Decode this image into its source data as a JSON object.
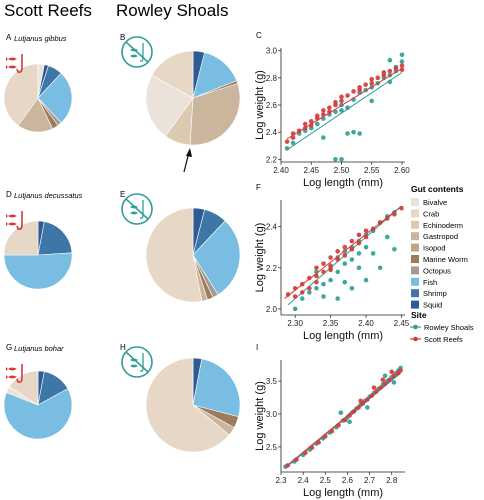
{
  "headers": {
    "col1": "Scott Reefs",
    "col2": "Rowley Shoals"
  },
  "colors": {
    "Bivalve": "#ebe3d9",
    "Crab": "#e6d7c7",
    "Echinoderm": "#dcc9b2",
    "Gastropod": "#cbb59c",
    "Isopod": "#bfa58a",
    "Marine Worm": "#9c7c5e",
    "Octopus": "#a79a90",
    "Fish": "#79bde3",
    "Shrimp": "#3f76a8",
    "Squid": "#2e5b94",
    "rowley": "#2f9e98",
    "scott": "#d63a3a",
    "fish_icon_red": "#d63a3a",
    "fish_icon_teal": "#2f9e98"
  },
  "legend": {
    "gut_title": "Gut contents",
    "gut_items": [
      "Bivalve",
      "Crab",
      "Echinoderm",
      "Gastropod",
      "Isopod",
      "Marine Worm",
      "Octopus",
      "Fish",
      "Shrimp",
      "Squid"
    ],
    "site_title": "Site",
    "site_items": [
      "Rowley Shoals",
      "Scott Reefs"
    ]
  },
  "icons": {
    "red": "fish-on-hook-icon",
    "teal": "no-fishing-icon"
  },
  "chart_data": [
    {
      "type": "pie",
      "label": "A",
      "species": "Lutjanus gibbus",
      "site": "Scott Reefs",
      "slices": [
        {
          "cat": "Bivalve",
          "value": 3
        },
        {
          "cat": "Squid",
          "value": 2
        },
        {
          "cat": "Shrimp",
          "value": 7
        },
        {
          "cat": "Fish",
          "value": 26
        },
        {
          "cat": "Octopus",
          "value": 2
        },
        {
          "cat": "Marine Worm",
          "value": 3
        },
        {
          "cat": "Gastropod",
          "value": 17
        },
        {
          "cat": "Crab",
          "value": 40
        }
      ]
    },
    {
      "type": "pie",
      "label": "B",
      "species": "",
      "site": "Rowley Shoals",
      "slices": [
        {
          "cat": "Squid",
          "value": 4
        },
        {
          "cat": "Fish",
          "value": 15
        },
        {
          "cat": "Marine Worm",
          "value": 1
        },
        {
          "cat": "Gastropod",
          "value": 31
        },
        {
          "cat": "Echinoderm",
          "value": 9
        },
        {
          "cat": "Bivalve",
          "value": 23
        },
        {
          "cat": "Crab",
          "value": 17
        }
      ]
    },
    {
      "type": "line",
      "label": "C",
      "xlabel": "Log length (mm)",
      "ylabel": "Log weight (g)",
      "xlim": [
        2.4,
        2.605
      ],
      "ylim": [
        2.18,
        3.02
      ],
      "xticks": [
        2.4,
        2.45,
        2.5,
        2.55,
        2.6
      ],
      "xtick_labels": [
        "2.40",
        "2.45",
        "2.50",
        "2.55",
        "2.60"
      ],
      "yticks": [
        2.2,
        2.4,
        2.6,
        2.8,
        3.0
      ],
      "ytick_labels": [
        "2.2",
        "2.4",
        "2.6",
        "2.8",
        "3.0"
      ],
      "series": [
        {
          "name": "Rowley Shoals",
          "fit": [
            [
              2.41,
              2.27
            ],
            [
              2.6,
              2.84
            ]
          ],
          "points": [
            [
              2.41,
              2.28
            ],
            [
              2.42,
              2.32
            ],
            [
              2.43,
              2.39
            ],
            [
              2.44,
              2.41
            ],
            [
              2.45,
              2.43
            ],
            [
              2.46,
              2.46
            ],
            [
              2.47,
              2.5
            ],
            [
              2.47,
              2.36
            ],
            [
              2.48,
              2.53
            ],
            [
              2.49,
              2.55
            ],
            [
              2.5,
              2.56
            ],
            [
              2.5,
              2.6
            ],
            [
              2.51,
              2.58
            ],
            [
              2.52,
              2.64
            ],
            [
              2.53,
              2.69
            ],
            [
              2.54,
              2.71
            ],
            [
              2.55,
              2.73
            ],
            [
              2.56,
              2.76
            ],
            [
              2.57,
              2.8
            ],
            [
              2.58,
              2.82
            ],
            [
              2.59,
              2.85
            ],
            [
              2.59,
              2.88
            ],
            [
              2.6,
              2.92
            ],
            [
              2.6,
              2.97
            ],
            [
              2.58,
              2.93
            ],
            [
              2.49,
              2.2
            ],
            [
              2.5,
              2.2
            ],
            [
              2.51,
              2.39
            ],
            [
              2.52,
              2.4
            ],
            [
              2.53,
              2.39
            ],
            [
              2.55,
              2.63
            ],
            [
              2.58,
              2.77
            ]
          ]
        },
        {
          "name": "Scott Reefs",
          "fit": [
            [
              2.41,
              2.35
            ],
            [
              2.6,
              2.87
            ]
          ],
          "points": [
            [
              2.41,
              2.33
            ],
            [
              2.42,
              2.36
            ],
            [
              2.42,
              2.39
            ],
            [
              2.43,
              2.41
            ],
            [
              2.44,
              2.43
            ],
            [
              2.44,
              2.46
            ],
            [
              2.45,
              2.48
            ],
            [
              2.45,
              2.45
            ],
            [
              2.46,
              2.5
            ],
            [
              2.46,
              2.52
            ],
            [
              2.47,
              2.53
            ],
            [
              2.47,
              2.56
            ],
            [
              2.48,
              2.58
            ],
            [
              2.48,
              2.55
            ],
            [
              2.49,
              2.6
            ],
            [
              2.49,
              2.62
            ],
            [
              2.5,
              2.63
            ],
            [
              2.5,
              2.66
            ],
            [
              2.51,
              2.67
            ],
            [
              2.52,
              2.7
            ],
            [
              2.53,
              2.71
            ],
            [
              2.53,
              2.73
            ],
            [
              2.54,
              2.75
            ],
            [
              2.55,
              2.76
            ],
            [
              2.55,
              2.79
            ],
            [
              2.56,
              2.8
            ],
            [
              2.57,
              2.82
            ],
            [
              2.57,
              2.84
            ],
            [
              2.58,
              2.85
            ],
            [
              2.59,
              2.87
            ],
            [
              2.6,
              2.89
            ],
            [
              2.6,
              2.86
            ]
          ]
        }
      ]
    },
    {
      "type": "pie",
      "label": "D",
      "species": "Lutjanus decussatus",
      "site": "Scott Reefs",
      "slices": [
        {
          "cat": "Squid",
          "value": 3
        },
        {
          "cat": "Shrimp",
          "value": 21
        },
        {
          "cat": "Fish",
          "value": 51
        },
        {
          "cat": "Crab",
          "value": 25
        }
      ]
    },
    {
      "type": "pie",
      "label": "E",
      "species": "",
      "site": "Rowley Shoals",
      "slices": [
        {
          "cat": "Squid",
          "value": 4
        },
        {
          "cat": "Shrimp",
          "value": 8
        },
        {
          "cat": "Fish",
          "value": 29
        },
        {
          "cat": "Octopus",
          "value": 2
        },
        {
          "cat": "Marine Worm",
          "value": 2
        },
        {
          "cat": "Gastropod",
          "value": 2
        },
        {
          "cat": "Crab",
          "value": 53
        }
      ]
    },
    {
      "type": "line",
      "label": "F",
      "xlabel": "Log length (mm)",
      "ylabel": "Log weight (g)",
      "xlim": [
        2.28,
        2.455
      ],
      "ylim": [
        1.97,
        2.53
      ],
      "xticks": [
        2.3,
        2.35,
        2.4,
        2.45
      ],
      "xtick_labels": [
        "2.30",
        "2.35",
        "2.40",
        "2.45"
      ],
      "yticks": [
        2.0,
        2.2,
        2.4
      ],
      "ytick_labels": [
        "2.0",
        "2.2",
        "2.4"
      ],
      "series": [
        {
          "name": "Rowley Shoals",
          "fit": [
            [
              2.29,
              2.02
            ],
            [
              2.45,
              2.5
            ]
          ],
          "points": [
            [
              2.3,
              2.0
            ],
            [
              2.31,
              2.05
            ],
            [
              2.32,
              2.08
            ],
            [
              2.33,
              2.1
            ],
            [
              2.34,
              2.12
            ],
            [
              2.35,
              2.14
            ],
            [
              2.35,
              2.2
            ],
            [
              2.36,
              2.18
            ],
            [
              2.36,
              2.25
            ],
            [
              2.37,
              2.22
            ],
            [
              2.37,
              2.28
            ],
            [
              2.38,
              2.24
            ],
            [
              2.38,
              2.3
            ],
            [
              2.39,
              2.27
            ],
            [
              2.39,
              2.33
            ],
            [
              2.4,
              2.3
            ],
            [
              2.4,
              2.36
            ],
            [
              2.41,
              2.38
            ],
            [
              2.42,
              2.42
            ],
            [
              2.43,
              2.45
            ],
            [
              2.44,
              2.47
            ],
            [
              2.44,
              2.29
            ],
            [
              2.42,
              2.2
            ],
            [
              2.4,
              2.14
            ],
            [
              2.38,
              2.1
            ],
            [
              2.36,
              2.05
            ],
            [
              2.33,
              2.18
            ],
            [
              2.41,
              2.27
            ],
            [
              2.43,
              2.35
            ],
            [
              2.39,
              2.2
            ],
            [
              2.37,
              2.13
            ],
            [
              2.34,
              2.06
            ]
          ]
        },
        {
          "name": "Scott Reefs",
          "fit": [
            [
              2.285,
              2.05
            ],
            [
              2.45,
              2.5
            ]
          ],
          "points": [
            [
              2.29,
              2.07
            ],
            [
              2.3,
              2.1
            ],
            [
              2.3,
              2.06
            ],
            [
              2.31,
              2.12
            ],
            [
              2.32,
              2.15
            ],
            [
              2.32,
              2.1
            ],
            [
              2.33,
              2.16
            ],
            [
              2.33,
              2.2
            ],
            [
              2.34,
              2.18
            ],
            [
              2.34,
              2.22
            ],
            [
              2.35,
              2.21
            ],
            [
              2.35,
              2.25
            ],
            [
              2.36,
              2.24
            ],
            [
              2.36,
              2.28
            ],
            [
              2.37,
              2.26
            ],
            [
              2.37,
              2.3
            ],
            [
              2.38,
              2.29
            ],
            [
              2.38,
              2.33
            ],
            [
              2.39,
              2.32
            ],
            [
              2.39,
              2.36
            ],
            [
              2.4,
              2.35
            ],
            [
              2.4,
              2.38
            ],
            [
              2.41,
              2.39
            ],
            [
              2.42,
              2.42
            ],
            [
              2.43,
              2.44
            ],
            [
              2.44,
              2.46
            ],
            [
              2.45,
              2.49
            ],
            [
              2.31,
              2.08
            ],
            [
              2.33,
              2.13
            ],
            [
              2.35,
              2.19
            ]
          ]
        }
      ]
    },
    {
      "type": "pie",
      "label": "G",
      "species": "Lutjanus bohar",
      "site": "Scott Reefs",
      "slices": [
        {
          "cat": "Squid",
          "value": 3
        },
        {
          "cat": "Shrimp",
          "value": 14
        },
        {
          "cat": "Fish",
          "value": 64
        },
        {
          "cat": "Bivalve",
          "value": 3
        },
        {
          "cat": "Crab",
          "value": 16
        }
      ]
    },
    {
      "type": "pie",
      "label": "H",
      "species": "",
      "site": "Rowley Shoals",
      "slices": [
        {
          "cat": "Squid",
          "value": 3
        },
        {
          "cat": "Fish",
          "value": 26
        },
        {
          "cat": "Marine Worm",
          "value": 4
        },
        {
          "cat": "Gastropod",
          "value": 3
        },
        {
          "cat": "Crab",
          "value": 64
        }
      ]
    },
    {
      "type": "line",
      "label": "I",
      "xlabel": "Log length (mm)",
      "ylabel": "Log weight (g)",
      "xlim": [
        2.3,
        2.86
      ],
      "ylim": [
        2.12,
        3.82
      ],
      "xticks": [
        2.3,
        2.4,
        2.5,
        2.6,
        2.7,
        2.8
      ],
      "xtick_labels": [
        "2.3",
        "2.4",
        "2.5",
        "2.6",
        "2.7",
        "2.8"
      ],
      "yticks": [
        2.5,
        3.0,
        3.5
      ],
      "ytick_labels": [
        "2.5",
        "3.0",
        "3.5"
      ],
      "series": [
        {
          "name": "Rowley Shoals",
          "fit": [
            [
              2.32,
              2.18
            ],
            [
              2.84,
              3.62
            ]
          ],
          "points": [
            [
              2.32,
              2.2
            ],
            [
              2.36,
              2.28
            ],
            [
              2.4,
              2.38
            ],
            [
              2.43,
              2.46
            ],
            [
              2.46,
              2.55
            ],
            [
              2.49,
              2.63
            ],
            [
              2.52,
              2.72
            ],
            [
              2.55,
              2.8
            ],
            [
              2.58,
              2.9
            ],
            [
              2.6,
              2.95
            ],
            [
              2.62,
              3.02
            ],
            [
              2.64,
              3.08
            ],
            [
              2.66,
              3.14
            ],
            [
              2.68,
              3.2
            ],
            [
              2.7,
              3.26
            ],
            [
              2.72,
              3.32
            ],
            [
              2.74,
              3.38
            ],
            [
              2.76,
              3.45
            ],
            [
              2.78,
              3.5
            ],
            [
              2.8,
              3.56
            ],
            [
              2.82,
              3.62
            ],
            [
              2.83,
              3.66
            ],
            [
              2.84,
              3.7
            ],
            [
              2.57,
              3.02
            ],
            [
              2.61,
              2.88
            ],
            [
              2.69,
              3.1
            ],
            [
              2.77,
              3.58
            ],
            [
              2.81,
              3.48
            ]
          ]
        },
        {
          "name": "Scott Reefs",
          "fit": [
            [
              2.32,
              2.2
            ],
            [
              2.84,
              3.64
            ]
          ],
          "points": [
            [
              2.33,
              2.22
            ],
            [
              2.37,
              2.31
            ],
            [
              2.41,
              2.41
            ],
            [
              2.44,
              2.49
            ],
            [
              2.47,
              2.57
            ],
            [
              2.5,
              2.66
            ],
            [
              2.53,
              2.74
            ],
            [
              2.56,
              2.83
            ],
            [
              2.59,
              2.91
            ],
            [
              2.61,
              2.98
            ],
            [
              2.63,
              3.04
            ],
            [
              2.65,
              3.1
            ],
            [
              2.67,
              3.16
            ],
            [
              2.69,
              3.22
            ],
            [
              2.71,
              3.28
            ],
            [
              2.73,
              3.34
            ],
            [
              2.75,
              3.4
            ],
            [
              2.77,
              3.46
            ],
            [
              2.79,
              3.52
            ],
            [
              2.81,
              3.58
            ],
            [
              2.83,
              3.62
            ],
            [
              2.84,
              3.66
            ],
            [
              2.8,
              3.64
            ],
            [
              2.76,
              3.52
            ],
            [
              2.72,
              3.4
            ],
            [
              2.66,
              3.2
            ]
          ]
        }
      ]
    }
  ]
}
